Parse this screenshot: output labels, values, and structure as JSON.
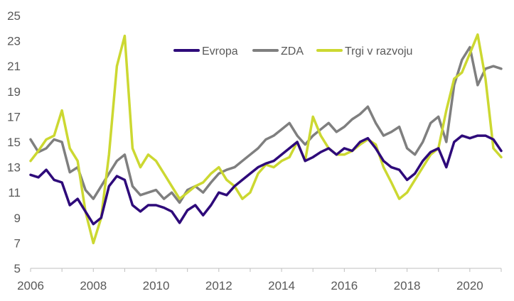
{
  "chart_data": {
    "type": "line",
    "title": "",
    "xlabel": "",
    "ylabel": "",
    "ylim": [
      5,
      25
    ],
    "xlim": [
      2006,
      2021
    ],
    "yticks": [
      5,
      7,
      9,
      11,
      13,
      15,
      17,
      19,
      21,
      23,
      25
    ],
    "xticks": [
      "2006",
      "2008",
      "2010",
      "2012",
      "2014",
      "2016",
      "2018",
      "2020"
    ],
    "grid": false,
    "legend_position": "top",
    "series": [
      {
        "name": "Evropa",
        "color": "#2e0a7a",
        "x": [
          2006.0,
          2006.25,
          2006.5,
          2006.75,
          2007.0,
          2007.25,
          2007.5,
          2007.75,
          2008.0,
          2008.25,
          2008.5,
          2008.75,
          2009.0,
          2009.25,
          2009.5,
          2009.75,
          2010.0,
          2010.25,
          2010.5,
          2010.75,
          2011.0,
          2011.25,
          2011.5,
          2011.75,
          2012.0,
          2012.25,
          2012.5,
          2012.75,
          2013.0,
          2013.25,
          2013.5,
          2013.75,
          2014.0,
          2014.25,
          2014.5,
          2014.75,
          2015.0,
          2015.25,
          2015.5,
          2015.75,
          2016.0,
          2016.25,
          2016.5,
          2016.75,
          2017.0,
          2017.25,
          2017.5,
          2017.75,
          2018.0,
          2018.25,
          2018.5,
          2018.75,
          2019.0,
          2019.25,
          2019.5,
          2019.75,
          2020.0,
          2020.25,
          2020.5,
          2020.75,
          2021.0
        ],
        "values": [
          12.4,
          12.2,
          12.8,
          12.0,
          11.8,
          10.0,
          10.5,
          9.5,
          8.5,
          9.0,
          11.5,
          12.3,
          12.0,
          10.0,
          9.5,
          10.0,
          10.0,
          9.8,
          9.5,
          8.6,
          9.6,
          10.0,
          9.2,
          10.0,
          11.0,
          10.8,
          11.5,
          12.0,
          12.5,
          13.0,
          13.3,
          13.5,
          14.0,
          14.5,
          15.0,
          13.5,
          13.8,
          14.2,
          14.5,
          14.0,
          14.5,
          14.3,
          15.0,
          15.3,
          14.5,
          13.5,
          13.0,
          12.8,
          12.0,
          12.5,
          13.5,
          14.2,
          14.5,
          13.0,
          15.0,
          15.5,
          15.3,
          15.5,
          15.5,
          15.2,
          14.3
        ]
      },
      {
        "name": "ZDA",
        "color": "#7f7f7f",
        "x": [
          2006.0,
          2006.25,
          2006.5,
          2006.75,
          2007.0,
          2007.25,
          2007.5,
          2007.75,
          2008.0,
          2008.25,
          2008.5,
          2008.75,
          2009.0,
          2009.25,
          2009.5,
          2009.75,
          2010.0,
          2010.25,
          2010.5,
          2010.75,
          2011.0,
          2011.25,
          2011.5,
          2011.75,
          2012.0,
          2012.25,
          2012.5,
          2012.75,
          2013.0,
          2013.25,
          2013.5,
          2013.75,
          2014.0,
          2014.25,
          2014.5,
          2014.75,
          2015.0,
          2015.25,
          2015.5,
          2015.75,
          2016.0,
          2016.25,
          2016.5,
          2016.75,
          2017.0,
          2017.25,
          2017.5,
          2017.75,
          2018.0,
          2018.25,
          2018.5,
          2018.75,
          2019.0,
          2019.25,
          2019.5,
          2019.75,
          2020.0,
          2020.25,
          2020.5,
          2020.75,
          2021.0
        ],
        "values": [
          15.2,
          14.2,
          14.5,
          15.2,
          15.0,
          12.6,
          13.0,
          11.2,
          10.5,
          11.5,
          12.5,
          13.5,
          14.0,
          11.5,
          10.8,
          11.0,
          11.2,
          10.5,
          11.0,
          10.2,
          11.2,
          11.5,
          11.0,
          11.8,
          12.5,
          12.8,
          13.0,
          13.5,
          14.0,
          14.5,
          15.2,
          15.5,
          16.0,
          16.5,
          15.5,
          14.8,
          15.5,
          16.0,
          16.5,
          15.8,
          16.2,
          16.8,
          17.2,
          17.8,
          16.5,
          15.5,
          15.8,
          16.2,
          14.5,
          14.0,
          15.0,
          16.5,
          17.0,
          15.0,
          19.5,
          21.5,
          22.5,
          19.5,
          20.8,
          21.0,
          20.8
        ]
      },
      {
        "name": "Trgi v razvoju",
        "color": "#ccd831",
        "x": [
          2006.0,
          2006.25,
          2006.5,
          2006.75,
          2007.0,
          2007.25,
          2007.5,
          2007.75,
          2008.0,
          2008.25,
          2008.5,
          2008.75,
          2009.0,
          2009.25,
          2009.5,
          2009.75,
          2010.0,
          2010.25,
          2010.5,
          2010.75,
          2011.0,
          2011.25,
          2011.5,
          2011.75,
          2012.0,
          2012.25,
          2012.5,
          2012.75,
          2013.0,
          2013.25,
          2013.5,
          2013.75,
          2014.0,
          2014.25,
          2014.5,
          2014.75,
          2015.0,
          2015.25,
          2015.5,
          2015.75,
          2016.0,
          2016.25,
          2016.5,
          2016.75,
          2017.0,
          2017.25,
          2017.5,
          2017.75,
          2018.0,
          2018.25,
          2018.5,
          2018.75,
          2019.0,
          2019.25,
          2019.5,
          2019.75,
          2020.0,
          2020.25,
          2020.5,
          2020.75,
          2021.0
        ],
        "values": [
          13.5,
          14.3,
          15.2,
          15.5,
          17.5,
          14.5,
          13.5,
          9.5,
          7.0,
          9.0,
          14.0,
          21.0,
          23.4,
          14.5,
          13.0,
          14.0,
          13.5,
          12.5,
          11.5,
          10.5,
          11.0,
          11.5,
          11.8,
          12.5,
          13.0,
          12.0,
          11.5,
          10.5,
          11.0,
          12.5,
          13.2,
          13.0,
          13.5,
          13.8,
          15.0,
          13.5,
          17.0,
          15.5,
          14.5,
          14.0,
          14.0,
          14.3,
          14.8,
          15.2,
          14.8,
          13.0,
          11.8,
          10.5,
          11.0,
          12.0,
          13.0,
          14.0,
          14.5,
          17.5,
          20.0,
          20.5,
          22.0,
          23.5,
          20.0,
          14.5,
          13.8
        ]
      }
    ]
  }
}
